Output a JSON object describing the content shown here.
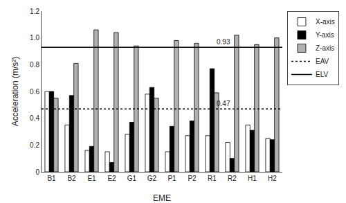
{
  "chart_data": {
    "type": "bar",
    "categories": [
      "B1",
      "B2",
      "E1",
      "E2",
      "G1",
      "G2",
      "P1",
      "P2",
      "R1",
      "R2",
      "H1",
      "H2"
    ],
    "series": [
      {
        "name": "X-axis",
        "color": "white",
        "values": [
          0.6,
          0.35,
          0.16,
          0.15,
          0.28,
          0.58,
          0.15,
          0.27,
          0.27,
          0.22,
          0.35,
          0.25
        ]
      },
      {
        "name": "Y-axis",
        "color": "black",
        "values": [
          0.6,
          0.57,
          0.19,
          0.07,
          0.37,
          0.63,
          0.34,
          0.38,
          0.77,
          0.1,
          0.31,
          0.24
        ]
      },
      {
        "name": "Z-axis",
        "color": "#b0b0b0",
        "values": [
          0.55,
          0.81,
          1.06,
          1.04,
          0.94,
          0.55,
          0.98,
          0.96,
          0.59,
          1.02,
          0.95,
          1.0
        ]
      }
    ],
    "reference_lines": [
      {
        "name": "EAV",
        "value": 0.47,
        "label": "0.47",
        "color": "black",
        "line_style": "dotted"
      },
      {
        "name": "ELV",
        "value": 0.93,
        "label": "0.93",
        "color": "black",
        "line_style": "solid"
      }
    ],
    "xlabel": "EME",
    "ylabel": "Acceleration (m/s²)",
    "ylim": [
      0,
      1.2
    ],
    "yticks": [
      0,
      0.2,
      0.4,
      0.6,
      0.8,
      {
        "value": 1.0,
        "label": "1.0"
      },
      1.2
    ],
    "grid": false,
    "legend": "right"
  }
}
